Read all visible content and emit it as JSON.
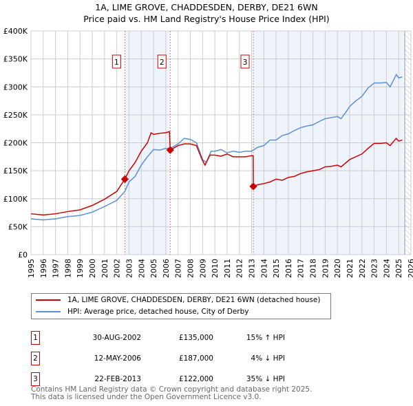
{
  "title": {
    "line1": "1A, LIME GROVE, CHADDESDEN, DERBY, DE21 6WN",
    "line2": "Price paid vs. HM Land Registry's House Price Index (HPI)"
  },
  "chart_data": {
    "type": "line",
    "title": "1A, LIME GROVE, CHADDESDEN, DERBY, DE21 6WN — Price paid vs. HM Land Registry's House Price Index (HPI)",
    "xlim": [
      1995,
      2026
    ],
    "ylim": [
      0,
      400000
    ],
    "x_ticks": [
      "1995",
      "1996",
      "1997",
      "1998",
      "1999",
      "2000",
      "2001",
      "2002",
      "2003",
      "2004",
      "2005",
      "2006",
      "2007",
      "2008",
      "2009",
      "2010",
      "2011",
      "2012",
      "2013",
      "2014",
      "2015",
      "2016",
      "2017",
      "2018",
      "2019",
      "2020",
      "2021",
      "2022",
      "2023",
      "2024",
      "2025",
      "2026"
    ],
    "y_ticks": [
      {
        "v": 0,
        "label": "£0"
      },
      {
        "v": 50000,
        "label": "£50K"
      },
      {
        "v": 100000,
        "label": "£100K"
      },
      {
        "v": 150000,
        "label": "£150K"
      },
      {
        "v": 200000,
        "label": "£200K"
      },
      {
        "v": 250000,
        "label": "£250K"
      },
      {
        "v": 300000,
        "label": "£300K"
      },
      {
        "v": 350000,
        "label": "£350K"
      },
      {
        "v": 400000,
        "label": "£400K"
      }
    ],
    "grid": true,
    "shaded_ranges": [
      [
        2002.66,
        2006.36
      ],
      [
        2013.14,
        2025.5
      ]
    ],
    "forecast_hatch_from": 2025.5,
    "series": [
      {
        "name": "1A, LIME GROVE, CHADDESDEN, DERBY, DE21 6WN (detached house)",
        "color": "#cc0000",
        "x": [
          1995,
          1996,
          1997,
          1998,
          1999,
          2000,
          2001,
          2002,
          2002.66,
          2003,
          2003.5,
          2004,
          2004.5,
          2004.8,
          2005,
          2005.5,
          2006,
          2006.3,
          2006.36,
          2007,
          2007.5,
          2008,
          2008.5,
          2009,
          2009.2,
          2009.6,
          2010,
          2010.5,
          2011,
          2011.5,
          2012,
          2012.5,
          2013,
          2013.13,
          2013.14,
          2013.5,
          2014,
          2014.5,
          2015,
          2015.5,
          2016,
          2016.5,
          2017,
          2017.5,
          2018,
          2018.5,
          2019,
          2019.5,
          2020,
          2020.3,
          2021,
          2021.5,
          2022,
          2022.5,
          2023,
          2023.5,
          2024,
          2024.3,
          2024.8,
          2025,
          2025.3
        ],
        "y": [
          73000,
          71000,
          73000,
          77000,
          80000,
          88000,
          99000,
          113000,
          135000,
          150000,
          165000,
          185000,
          200000,
          218000,
          215000,
          217000,
          218000,
          220000,
          187000,
          195000,
          198000,
          198000,
          195000,
          168000,
          160000,
          178000,
          178000,
          176000,
          180000,
          175000,
          175000,
          175000,
          177000,
          177000,
          122000,
          125000,
          127000,
          130000,
          135000,
          133000,
          138000,
          140000,
          145000,
          148000,
          150000,
          152000,
          157000,
          158000,
          160000,
          157000,
          170000,
          175000,
          180000,
          190000,
          199000,
          199000,
          200000,
          195000,
          208000,
          203000,
          205000
        ]
      },
      {
        "name": "HPI: Average price, detached house, City of Derby",
        "color": "#5b8ed6",
        "x": [
          1995,
          1996,
          1997,
          1998,
          1999,
          2000,
          2001,
          2002,
          2002.66,
          2003,
          2003.5,
          2004,
          2004.5,
          2005,
          2005.5,
          2006,
          2006.36,
          2007,
          2007.5,
          2008,
          2008.5,
          2009,
          2009.3,
          2009.7,
          2010,
          2010.5,
          2011,
          2011.5,
          2012,
          2012.5,
          2013,
          2013.5,
          2014,
          2014.5,
          2015,
          2015.5,
          2016,
          2016.5,
          2017,
          2017.5,
          2018,
          2018.5,
          2019,
          2019.5,
          2020,
          2020.3,
          2020.7,
          2021,
          2021.5,
          2022,
          2022.5,
          2023,
          2023.5,
          2024,
          2024.3,
          2024.6,
          2024.8,
          2025,
          2025.3
        ],
        "y": [
          64000,
          62000,
          64000,
          68000,
          70000,
          76000,
          86000,
          97000,
          113000,
          130000,
          140000,
          160000,
          175000,
          188000,
          187000,
          190000,
          190000,
          198000,
          208000,
          206000,
          200000,
          170000,
          165000,
          185000,
          185000,
          188000,
          182000,
          185000,
          183000,
          185000,
          185000,
          192000,
          195000,
          205000,
          205000,
          213000,
          216000,
          222000,
          227000,
          230000,
          232000,
          238000,
          243000,
          245000,
          247000,
          243000,
          255000,
          265000,
          275000,
          283000,
          298000,
          307000,
          307000,
          308000,
          300000,
          313000,
          322000,
          316000,
          318000
        ]
      }
    ],
    "sales": [
      {
        "label": "1",
        "date": "30-AUG-2002",
        "x": 2002.66,
        "price": "£135,000",
        "y": 135000,
        "hpi": "15% ↑ HPI"
      },
      {
        "label": "2",
        "date": "12-MAY-2006",
        "x": 2006.36,
        "price": "£187,000",
        "y": 187000,
        "hpi": "4% ↓ HPI"
      },
      {
        "label": "3",
        "date": "22-FEB-2013",
        "x": 2013.14,
        "price": "£122,000",
        "y": 122000,
        "hpi": "35% ↓ HPI"
      }
    ]
  },
  "footer": {
    "line1": "Contains HM Land Registry data © Crown copyright and database right 2025.",
    "line2": "This data is licensed under the Open Government Licence v3.0."
  }
}
